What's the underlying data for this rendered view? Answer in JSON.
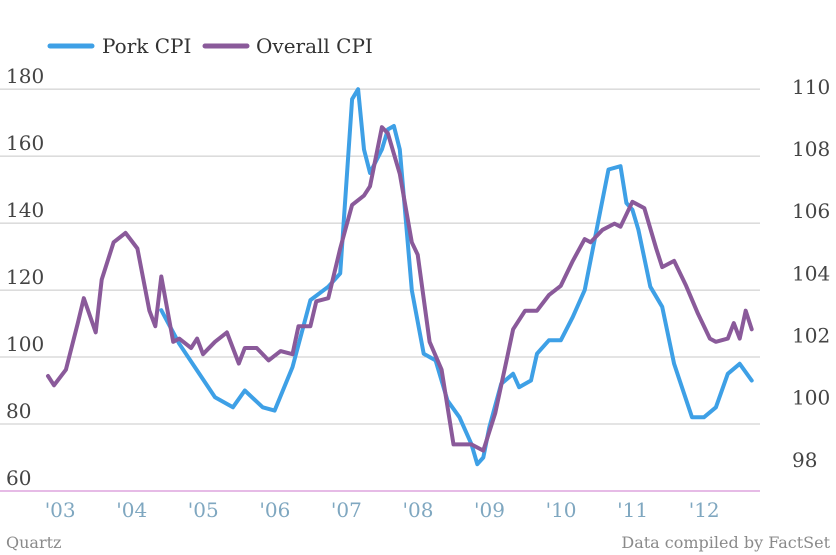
{
  "chart_data": {
    "type": "line",
    "title": "",
    "xlabel": "",
    "ylabel": "",
    "x_ticks": [
      "'03",
      "'04",
      "'05",
      "'06",
      "'07",
      "'08",
      "'09",
      "'10",
      "'11",
      "'12"
    ],
    "x_tick_years": [
      2003,
      2004,
      2005,
      2006,
      2007,
      2008,
      2009,
      2010,
      2011,
      2012
    ],
    "xlim": [
      "2003-01",
      "2012-12"
    ],
    "ylim_left": [
      60,
      190
    ],
    "yticks_left": [
      60,
      80,
      100,
      120,
      140,
      160,
      180
    ],
    "ylim_right": [
      97,
      111
    ],
    "yticks_right": [
      98,
      100,
      102,
      104,
      106,
      108,
      110
    ],
    "grid": "horizontal",
    "legend_position": "top-left",
    "series": [
      {
        "name": "Pork CPI",
        "axis": "left",
        "color": "#3ea0e6",
        "x": [
          "2004-08",
          "2004-11",
          "2005-02",
          "2005-05",
          "2005-08",
          "2005-10",
          "2006-01",
          "2006-03",
          "2006-06",
          "2006-09",
          "2006-12",
          "2007-02",
          "2007-04",
          "2007-05",
          "2007-06",
          "2007-07",
          "2007-09",
          "2007-10",
          "2007-11",
          "2007-12",
          "2008-02",
          "2008-04",
          "2008-06",
          "2008-08",
          "2008-10",
          "2008-12",
          "2009-01",
          "2009-02",
          "2009-03",
          "2009-05",
          "2009-07",
          "2009-08",
          "2009-10",
          "2009-11",
          "2010-01",
          "2010-03",
          "2010-05",
          "2010-07",
          "2010-09",
          "2010-11",
          "2011-01",
          "2011-02",
          "2011-03",
          "2011-04",
          "2011-06",
          "2011-08",
          "2011-10",
          "2012-01",
          "2012-03",
          "2012-05",
          "2012-07",
          "2012-09",
          "2012-11"
        ],
        "values": [
          114,
          104,
          96,
          88,
          85,
          90,
          85,
          84,
          97,
          117,
          121,
          125,
          177,
          180,
          162,
          155,
          162,
          168,
          169,
          162,
          120,
          101,
          99,
          87,
          82,
          74,
          68,
          70,
          79,
          92,
          95,
          91,
          93,
          101,
          105,
          105,
          112,
          120,
          138,
          156,
          157,
          146,
          144,
          138,
          121,
          115,
          98,
          82,
          82,
          85,
          95,
          98,
          93
        ]
      },
      {
        "name": "Overall CPI",
        "axis": "right",
        "color": "#8a5a9a",
        "x": [
          "2003-01",
          "2003-02",
          "2003-04",
          "2003-06",
          "2003-07",
          "2003-09",
          "2003-10",
          "2003-12",
          "2004-02",
          "2004-04",
          "2004-06",
          "2004-07",
          "2004-08",
          "2004-10",
          "2004-11",
          "2005-01",
          "2005-02",
          "2005-03",
          "2005-05",
          "2005-07",
          "2005-09",
          "2005-10",
          "2005-12",
          "2006-02",
          "2006-04",
          "2006-06",
          "2006-07",
          "2006-09",
          "2006-10",
          "2006-12",
          "2007-02",
          "2007-04",
          "2007-06",
          "2007-07",
          "2007-09",
          "2007-10",
          "2007-12",
          "2008-02",
          "2008-03",
          "2008-05",
          "2008-07",
          "2008-09",
          "2008-10",
          "2008-12",
          "2009-02",
          "2009-04",
          "2009-06",
          "2009-07",
          "2009-09",
          "2009-11",
          "2010-01",
          "2010-03",
          "2010-05",
          "2010-07",
          "2010-08",
          "2010-10",
          "2010-12",
          "2011-01",
          "2011-03",
          "2011-05",
          "2011-07",
          "2011-08",
          "2011-10",
          "2011-12",
          "2012-02",
          "2012-04",
          "2012-05",
          "2012-07",
          "2012-08",
          "2012-09",
          "2012-10",
          "2012-11"
        ],
        "values": [
          100.7,
          100.4,
          100.9,
          102.4,
          103.2,
          102.1,
          103.8,
          105.0,
          105.3,
          104.8,
          102.8,
          102.3,
          103.9,
          101.8,
          101.9,
          101.6,
          101.9,
          101.4,
          101.8,
          102.1,
          101.1,
          101.6,
          101.6,
          101.2,
          101.5,
          101.4,
          102.3,
          102.3,
          103.1,
          103.2,
          104.8,
          106.2,
          106.5,
          106.8,
          108.7,
          108.5,
          107.2,
          105.0,
          104.6,
          101.8,
          100.9,
          98.5,
          98.5,
          98.5,
          98.3,
          99.5,
          101.3,
          102.2,
          102.8,
          102.8,
          103.3,
          103.6,
          104.4,
          105.1,
          105.0,
          105.4,
          105.6,
          105.5,
          106.3,
          106.1,
          104.8,
          104.2,
          104.4,
          103.6,
          102.7,
          101.9,
          101.8,
          101.9,
          102.4,
          101.9,
          102.8,
          102.2
        ]
      }
    ]
  },
  "legend": {
    "items": [
      {
        "label": "Pork CPI",
        "color": "#3ea0e6"
      },
      {
        "label": "Overall CPI",
        "color": "#8a5a9a"
      }
    ]
  },
  "footer": {
    "source_left": "Quartz",
    "source_right": "Data compiled by FactSet"
  }
}
